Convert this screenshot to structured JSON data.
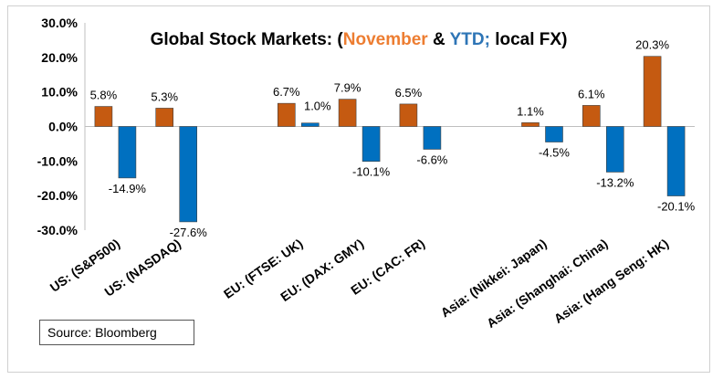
{
  "chart_data": {
    "type": "bar",
    "title_parts": [
      {
        "text": "Global Stock Markets: (",
        "color": "#000000"
      },
      {
        "text": "November",
        "color": "#ED7D31"
      },
      {
        "text": " & ",
        "color": "#000000"
      },
      {
        "text": "YTD;",
        "color": "#2E75B6"
      },
      {
        "text": " local FX)",
        "color": "#000000"
      }
    ],
    "categories": [
      "US: (S&P500)",
      "US: (NASDAQ)",
      "",
      "EU: (FTSE: UK)",
      "EU: (DAX: GMY)",
      "EU: (CAC: FR)",
      "",
      "Asia: (Nikkei: Japan)",
      "Asia: (Shanghai: China)",
      "Asia: (Hang Seng: HK)"
    ],
    "series": [
      {
        "color": "#C55A11",
        "values": [
          5.8,
          5.3,
          null,
          6.7,
          7.9,
          6.5,
          null,
          1.1,
          6.1,
          20.3
        ],
        "labels": [
          "5.8%",
          "5.3%",
          "",
          "6.7%",
          "7.9%",
          "6.5%",
          "",
          "1.1%",
          "6.1%",
          "20.3%"
        ]
      },
      {
        "color": "#0070C0",
        "values": [
          -14.9,
          -27.6,
          null,
          1.0,
          -10.1,
          -6.6,
          null,
          -4.5,
          -13.2,
          -20.1
        ],
        "labels": [
          "-14.9%",
          "-27.6%",
          "",
          "1.0%",
          "-10.1%",
          "-6.6%",
          "",
          "-4.5%",
          "-13.2%",
          "-20.1%"
        ]
      }
    ],
    "ylim": [
      -30,
      30
    ],
    "yticks": [
      30,
      20,
      10,
      0,
      -10,
      -20,
      -30
    ],
    "ytick_labels": [
      "30.0%",
      "20.0%",
      "10.0%",
      "0.0%",
      "-10.0%",
      "-20.0%",
      "-30.0%"
    ],
    "xlabel": "",
    "ylabel": "",
    "grid": false,
    "legend": "none"
  },
  "source": "Source: Bloomberg"
}
